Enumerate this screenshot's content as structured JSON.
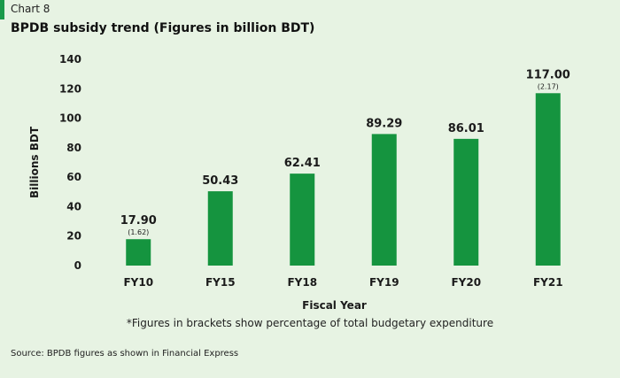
{
  "header": {
    "chart_number": "Chart 8",
    "title": "BPDB subsidy trend (Figures in billion BDT)"
  },
  "footnote": "*Figures in brackets show percentage of total budgetary expenditure",
  "source": "Source: BPDB figures as shown in Financial Express",
  "colors": {
    "bar": "#15943f",
    "background": "#e7f3e3",
    "accent": "#1a9a4a"
  },
  "chart_data": {
    "type": "bar",
    "title": "BPDB subsidy trend (Figures in billion BDT)",
    "xlabel": "Fiscal Year",
    "ylabel": "Billions BDT",
    "categories": [
      "FY10",
      "FY15",
      "FY18",
      "FY19",
      "FY20",
      "FY21"
    ],
    "values": [
      17.9,
      50.43,
      62.41,
      89.29,
      86.01,
      117.0
    ],
    "value_labels": [
      "17.90",
      "50.43",
      "62.41",
      "89.29",
      "86.01",
      "117.00"
    ],
    "bracket_labels": [
      "(1.62)",
      "",
      "",
      "",
      "",
      "(2.17)"
    ],
    "ylim": [
      0,
      140
    ],
    "yticks": [
      0,
      20,
      40,
      60,
      80,
      100,
      120,
      140
    ],
    "grid": false,
    "legend": "none"
  }
}
